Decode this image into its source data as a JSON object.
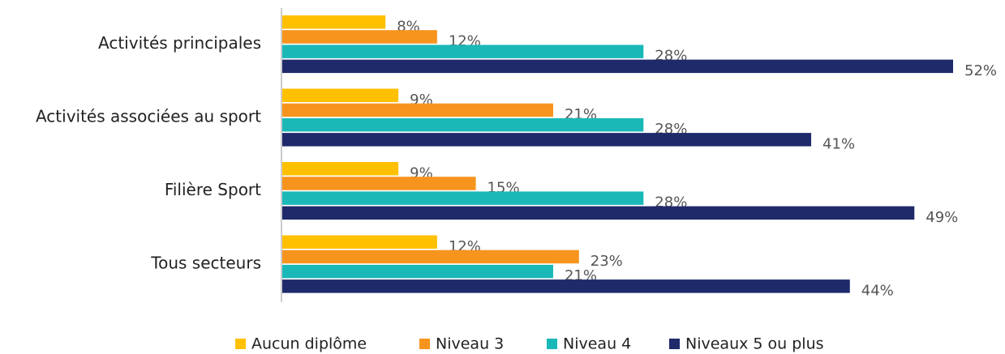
{
  "chart_data": {
    "type": "bar",
    "orientation": "horizontal",
    "categories": [
      "Activités principales",
      "Activités associées au sport",
      "Filière Sport",
      "Tous secteurs"
    ],
    "series": [
      {
        "name": "Aucun diplôme",
        "color": "#FFC000",
        "values": [
          8,
          9,
          9,
          12
        ],
        "value_labels": [
          "8%",
          "9%",
          "9%",
          "12%"
        ]
      },
      {
        "name": "Niveau 3",
        "color": "#F7941D",
        "values": [
          12,
          21,
          15,
          23
        ],
        "value_labels": [
          "12%",
          "21%",
          "15%",
          "23%"
        ]
      },
      {
        "name": "Niveau 4",
        "color": "#1BB8B8",
        "values": [
          28,
          28,
          28,
          21
        ],
        "value_labels": [
          "28%",
          "28%",
          "28%",
          "21%"
        ]
      },
      {
        "name": "Niveaux 5 ou plus",
        "color": "#1F2A6B",
        "values": [
          52,
          41,
          49,
          44
        ],
        "value_labels": [
          "52%",
          "41%",
          "49%",
          "44%"
        ]
      }
    ],
    "legend": "bottom"
  }
}
